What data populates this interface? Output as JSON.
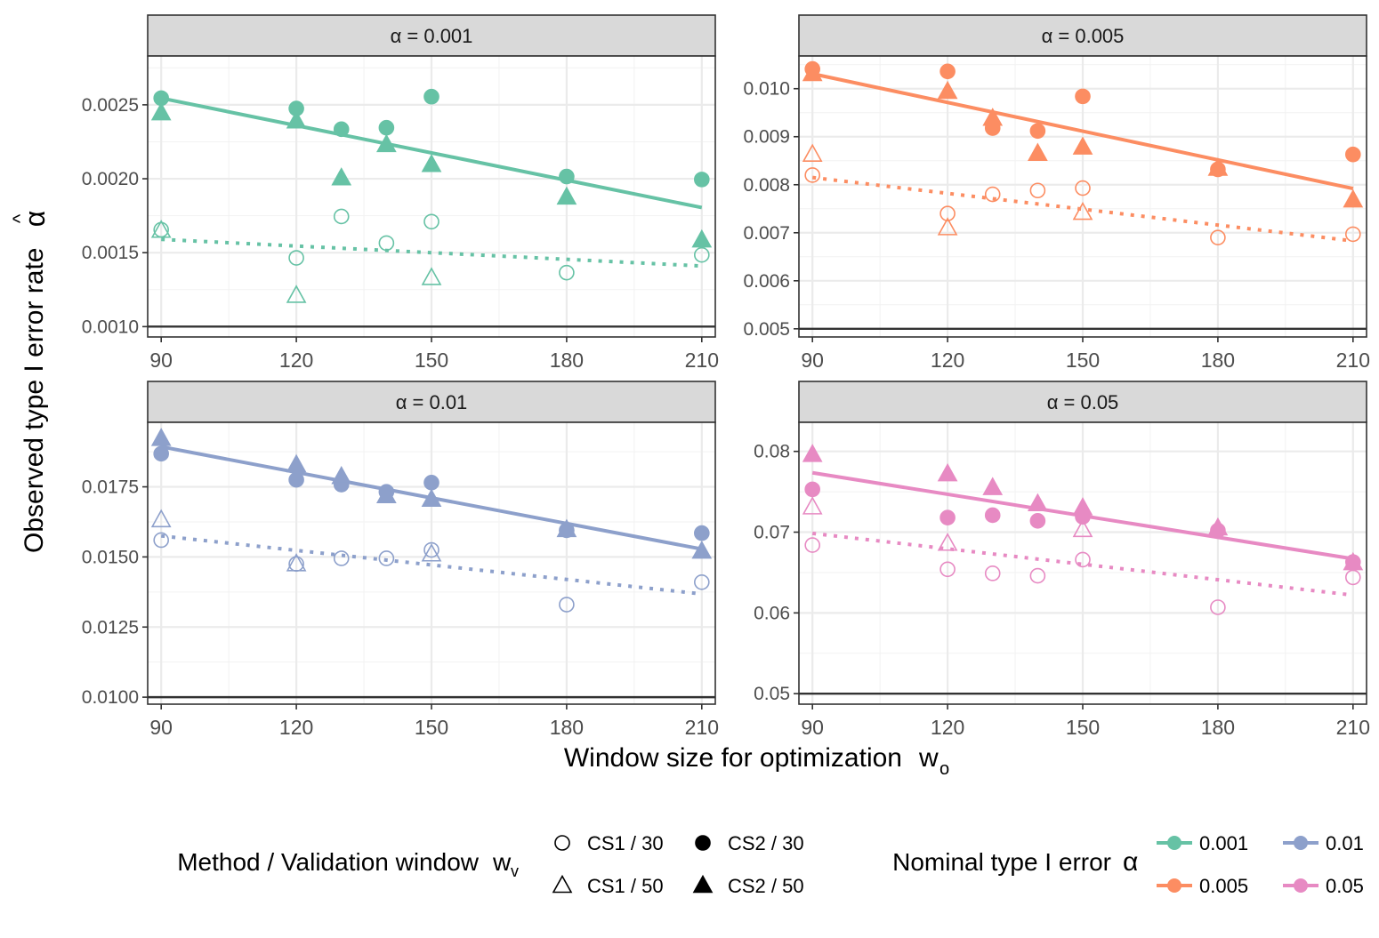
{
  "chart_data": {
    "type": "scatter",
    "y_label_main": "Observed type I error rate",
    "y_label_symbol": "α",
    "y_label_hat": "^",
    "x_label_main": "Window size for optimization",
    "x_label_symbol": "w",
    "x_label_sub": "o",
    "x_ticks": [
      90,
      120,
      150,
      180,
      210
    ],
    "x_range": [
      87,
      213
    ],
    "grid": true,
    "legend": {
      "placement": "bottom",
      "method_title_main": "Method / Validation window",
      "method_title_symbol": "w",
      "method_title_sub": "v",
      "methods": [
        {
          "label": "CS1 / 30",
          "shape": "circle-open"
        },
        {
          "label": "CS2 / 30",
          "shape": "circle-filled"
        },
        {
          "label": "CS1 / 50",
          "shape": "triangle-open"
        },
        {
          "label": "CS2 / 50",
          "shape": "triangle-filled"
        }
      ],
      "alpha_title_main": "Nominal type I error",
      "alpha_title_symbol": "α",
      "alphas": [
        {
          "label": "0.001",
          "color": "#66c2a5"
        },
        {
          "label": "0.01",
          "color": "#8da0cb"
        },
        {
          "label": "0.005",
          "color": "#fc8d62"
        },
        {
          "label": "0.05",
          "color": "#e78ac3"
        }
      ]
    },
    "panels": [
      {
        "strip": "α = 0.001",
        "color": "#66c2a5",
        "hline": 0.001,
        "ylim": [
          0.00093,
          0.00283
        ],
        "y_ticks": [
          0.001,
          0.0015,
          0.002,
          0.0025
        ],
        "y_tick_labels": [
          "0.0010",
          "0.0015",
          "0.0020",
          "0.0025"
        ],
        "y_minor": [
          0.00125,
          0.00175,
          0.00225,
          0.00275
        ],
        "fit_solid": [
          [
            90,
            0.002545
          ],
          [
            210,
            0.001805
          ]
        ],
        "fit_dotted": [
          [
            90,
            0.00159
          ],
          [
            210,
            0.00141
          ]
        ],
        "series": [
          {
            "name": "CS1 / 30",
            "shape": "circle-open",
            "x": [
              90,
              120,
              130,
              140,
              150,
              180,
              210
            ],
            "y": [
              0.001655,
              0.001465,
              0.001745,
              0.001565,
              0.00171,
              0.001365,
              0.001485
            ]
          },
          {
            "name": "CS2 / 30",
            "shape": "circle-filled",
            "x": [
              90,
              120,
              130,
              140,
              150,
              180,
              210
            ],
            "y": [
              0.002545,
              0.002475,
              0.002335,
              0.002345,
              0.002555,
              0.002015,
              0.001995
            ]
          },
          {
            "name": "CS1 / 50",
            "shape": "triangle-open",
            "x": [
              90,
              120,
              150
            ],
            "y": [
              0.00165,
              0.00121,
              0.00133
            ]
          },
          {
            "name": "CS2 / 50",
            "shape": "triangle-filled",
            "x": [
              90,
              120,
              130,
              140,
              150,
              180,
              210
            ],
            "y": [
              0.002445,
              0.00239,
              0.002005,
              0.00223,
              0.002095,
              0.001875,
              0.001585
            ]
          }
        ]
      },
      {
        "strip": "α = 0.005",
        "color": "#fc8d62",
        "hline": 0.005,
        "ylim": [
          0.00483,
          0.01068
        ],
        "y_ticks": [
          0.005,
          0.006,
          0.007,
          0.008,
          0.009,
          0.01
        ],
        "y_tick_labels": [
          "0.005",
          "0.006",
          "0.007",
          "0.008",
          "0.009",
          "0.010"
        ],
        "y_minor": [
          0.0055,
          0.0065,
          0.0075,
          0.0085,
          0.0095,
          0.0105
        ],
        "fit_solid": [
          [
            90,
            0.01031
          ],
          [
            210,
            0.00792
          ]
        ],
        "fit_dotted": [
          [
            90,
            0.00815
          ],
          [
            210,
            0.00683
          ]
        ],
        "series": [
          {
            "name": "CS1 / 30",
            "shape": "circle-open",
            "x": [
              90,
              120,
              130,
              140,
              150,
              180,
              210
            ],
            "y": [
              0.0082,
              0.0074,
              0.0078,
              0.00788,
              0.00793,
              0.0069,
              0.00697
            ]
          },
          {
            "name": "CS2 / 30",
            "shape": "circle-filled",
            "x": [
              90,
              120,
              130,
              140,
              150,
              180,
              210
            ],
            "y": [
              0.01041,
              0.01036,
              0.00918,
              0.00912,
              0.00984,
              0.00832,
              0.00863
            ]
          },
          {
            "name": "CS1 / 50",
            "shape": "triangle-open",
            "x": [
              90,
              120,
              150
            ],
            "y": [
              0.00863,
              0.0071,
              0.00742
            ]
          },
          {
            "name": "CS2 / 50",
            "shape": "triangle-filled",
            "x": [
              90,
              120,
              130,
              140,
              150,
              180,
              210
            ],
            "y": [
              0.01031,
              0.00994,
              0.00938,
              0.00865,
              0.00878,
              0.00834,
              0.00768
            ]
          }
        ]
      },
      {
        "strip": "α = 0.01",
        "color": "#8da0cb",
        "hline": 0.01,
        "ylim": [
          0.00975,
          0.0198
        ],
        "y_ticks": [
          0.01,
          0.0125,
          0.015,
          0.0175
        ],
        "y_tick_labels": [
          "0.0100",
          "0.0125",
          "0.0150",
          "0.0175"
        ],
        "y_minor": [
          0.01125,
          0.01375,
          0.01625,
          0.01875
        ],
        "fit_solid": [
          [
            90,
            0.01893
          ],
          [
            210,
            0.01528
          ]
        ],
        "fit_dotted": [
          [
            90,
            0.01575
          ],
          [
            210,
            0.01368
          ]
        ],
        "series": [
          {
            "name": "CS1 / 30",
            "shape": "circle-open",
            "x": [
              90,
              120,
              130,
              140,
              150,
              180,
              210
            ],
            "y": [
              0.0156,
              0.01475,
              0.01495,
              0.01495,
              0.01525,
              0.0133,
              0.0141
            ]
          },
          {
            "name": "CS2 / 30",
            "shape": "circle-filled",
            "x": [
              90,
              120,
              130,
              140,
              150,
              180,
              210
            ],
            "y": [
              0.01868,
              0.01775,
              0.01758,
              0.01732,
              0.01765,
              0.01595,
              0.01585
            ]
          },
          {
            "name": "CS1 / 50",
            "shape": "triangle-open",
            "x": [
              90,
              120,
              150
            ],
            "y": [
              0.01632,
              0.01475,
              0.0151
            ]
          },
          {
            "name": "CS2 / 50",
            "shape": "triangle-filled",
            "x": [
              90,
              120,
              130,
              140,
              150,
              180,
              210
            ],
            "y": [
              0.01922,
              0.01828,
              0.01786,
              0.01718,
              0.01705,
              0.01597,
              0.0152
            ]
          }
        ]
      },
      {
        "strip": "α = 0.05",
        "color": "#e78ac3",
        "hline": 0.05,
        "ylim": [
          0.0487,
          0.0836
        ],
        "y_ticks": [
          0.05,
          0.06,
          0.07,
          0.08
        ],
        "y_tick_labels": [
          "0.05",
          "0.06",
          "0.07",
          "0.08"
        ],
        "y_minor": [
          0.055,
          0.065,
          0.075
        ],
        "fit_solid": [
          [
            90,
            0.07735
          ],
          [
            210,
            0.0667
          ]
        ],
        "fit_dotted": [
          [
            90,
            0.06985
          ],
          [
            210,
            0.0622
          ]
        ],
        "series": [
          {
            "name": "CS1 / 30",
            "shape": "circle-open",
            "x": [
              90,
              120,
              130,
              140,
              150,
              180,
              210
            ],
            "y": [
              0.0684,
              0.0654,
              0.0649,
              0.0646,
              0.0666,
              0.0607,
              0.0644
            ]
          },
          {
            "name": "CS2 / 30",
            "shape": "circle-filled",
            "x": [
              90,
              120,
              130,
              140,
              150,
              180,
              210
            ],
            "y": [
              0.0753,
              0.0718,
              0.0721,
              0.0714,
              0.0719,
              0.0702,
              0.0663
            ]
          },
          {
            "name": "CS1 / 50",
            "shape": "triangle-open",
            "x": [
              90,
              120,
              150
            ],
            "y": [
              0.0731,
              0.0686,
              0.0703
            ]
          },
          {
            "name": "CS2 / 50",
            "shape": "triangle-filled",
            "x": [
              90,
              120,
              130,
              140,
              150,
              180,
              210
            ],
            "y": [
              0.0796,
              0.0772,
              0.0755,
              0.0735,
              0.073,
              0.0705,
              0.0662
            ]
          }
        ]
      }
    ]
  }
}
